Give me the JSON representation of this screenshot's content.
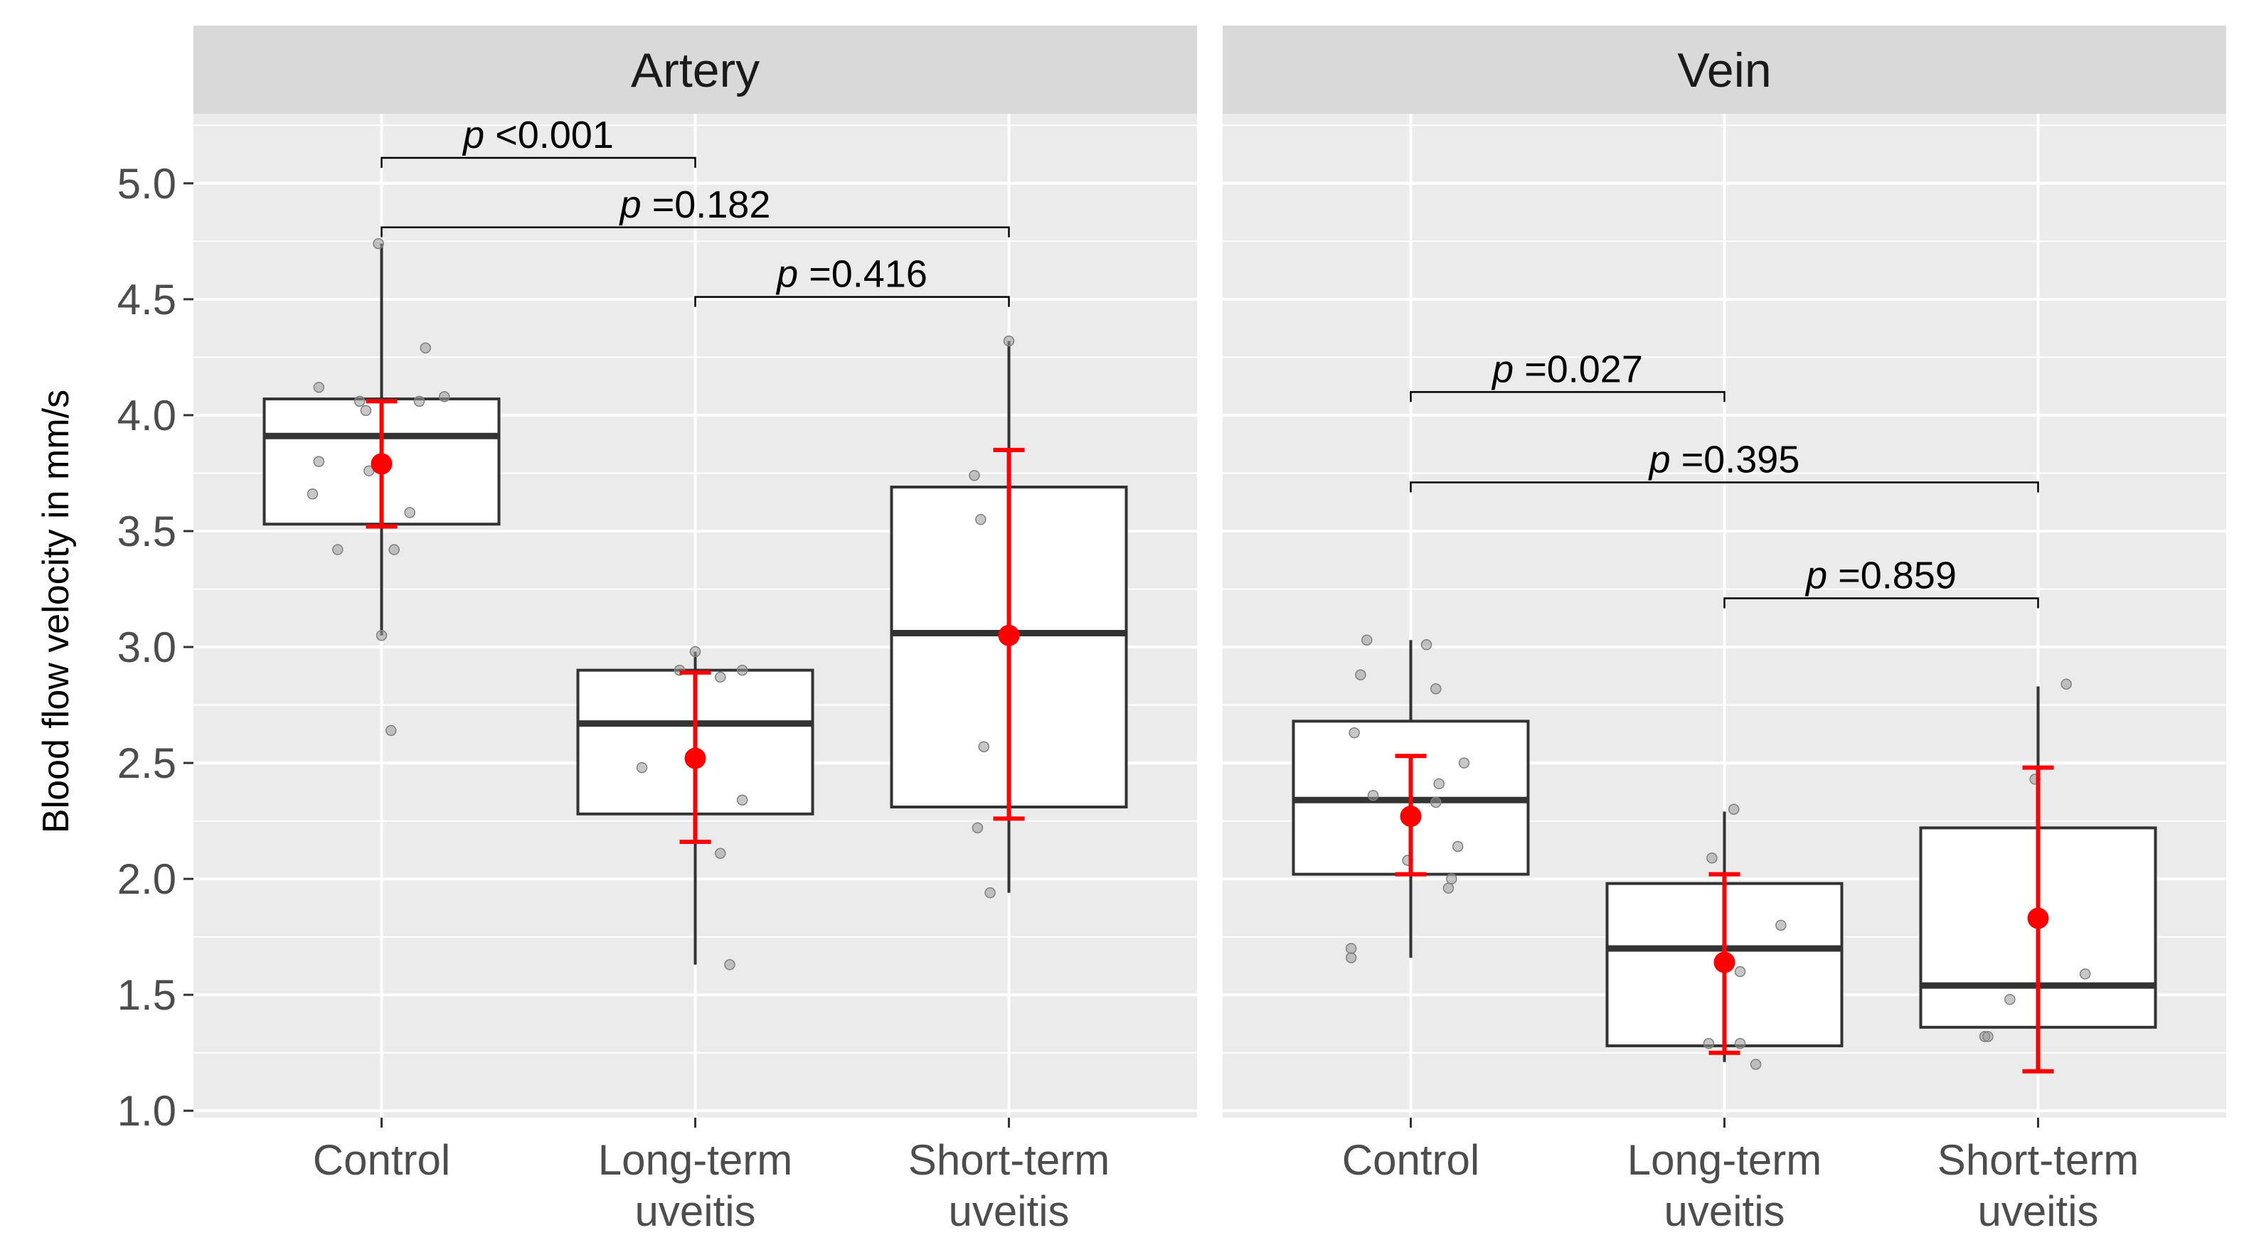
{
  "chart_data": {
    "type": "box",
    "ylabel": "Blood flow velocity in mm/s",
    "xlabel": "",
    "ylim": [
      0.97,
      5.3
    ],
    "yticks": [
      "1.0",
      "1.5",
      "2.0",
      "2.5",
      "3.0",
      "3.5",
      "4.0",
      "4.5",
      "5.0"
    ],
    "ytick_values": [
      1.0,
      1.5,
      2.0,
      2.5,
      3.0,
      3.5,
      4.0,
      4.5,
      5.0
    ],
    "categories": [
      [
        "Control"
      ],
      [
        "Long-term",
        "uveitis"
      ],
      [
        "Short-term",
        "uveitis"
      ]
    ],
    "colors": {
      "panel_bg": "#ebebeb",
      "strip_bg": "#d9d9d9",
      "grid": "#ffffff",
      "mean": "#ff0000",
      "box_line": "#333333",
      "point": "#999999"
    },
    "facets": [
      {
        "title": "Artery",
        "groups": [
          {
            "box": {
              "q1": 3.53,
              "median": 3.91,
              "q3": 4.07,
              "lower_whisker": 3.05,
              "upper_whisker": 4.74
            },
            "mean": 3.79,
            "ci": [
              3.52,
              4.06
            ],
            "points": [
              [
                -0.2,
                4.12
              ],
              [
                -0.07,
                4.06
              ],
              [
                -0.05,
                4.02
              ],
              [
                0.12,
                4.06
              ],
              [
                0.2,
                4.08
              ],
              [
                0.14,
                4.29
              ],
              [
                -0.2,
                3.8
              ],
              [
                -0.04,
                3.76
              ],
              [
                0.09,
                3.58
              ],
              [
                -0.22,
                3.66
              ],
              [
                -0.14,
                3.42
              ],
              [
                0.04,
                3.42
              ],
              [
                0.0,
                3.05
              ],
              [
                0.03,
                2.64
              ],
              [
                -0.01,
                4.74
              ]
            ]
          },
          {
            "box": {
              "q1": 2.28,
              "median": 2.67,
              "q3": 2.9,
              "lower_whisker": 1.63,
              "upper_whisker": 2.98
            },
            "mean": 2.52,
            "ci": [
              2.16,
              2.89
            ],
            "points": [
              [
                0.0,
                2.98
              ],
              [
                -0.05,
                2.9
              ],
              [
                0.15,
                2.9
              ],
              [
                0.08,
                2.87
              ],
              [
                -0.17,
                2.48
              ],
              [
                0.15,
                2.34
              ],
              [
                0.08,
                2.11
              ],
              [
                0.11,
                1.63
              ]
            ]
          },
          {
            "box": {
              "q1": 2.31,
              "median": 3.06,
              "q3": 3.69,
              "lower_whisker": 1.94,
              "upper_whisker": 4.32
            },
            "mean": 3.05,
            "ci": [
              2.26,
              3.85
            ],
            "points": [
              [
                0.0,
                4.32
              ],
              [
                -0.11,
                3.74
              ],
              [
                -0.09,
                3.55
              ],
              [
                -0.08,
                2.57
              ],
              [
                -0.1,
                2.22
              ],
              [
                -0.06,
                1.94
              ]
            ]
          }
        ],
        "comparisons": [
          {
            "from": 0,
            "to": 1,
            "y": 5.11,
            "label_p": "p",
            "label_val": " <0.001"
          },
          {
            "from": 0,
            "to": 2,
            "y": 4.81,
            "label_p": "p",
            "label_val": " =0.182"
          },
          {
            "from": 1,
            "to": 2,
            "y": 4.51,
            "label_p": "p",
            "label_val": " =0.416"
          }
        ]
      },
      {
        "title": "Vein",
        "groups": [
          {
            "box": {
              "q1": 2.02,
              "median": 2.34,
              "q3": 2.68,
              "lower_whisker": 1.66,
              "upper_whisker": 3.03
            },
            "mean": 2.27,
            "ci": [
              2.02,
              2.53
            ],
            "points": [
              [
                -0.14,
                3.03
              ],
              [
                0.05,
                3.01
              ],
              [
                -0.16,
                2.88
              ],
              [
                0.08,
                2.82
              ],
              [
                -0.18,
                2.63
              ],
              [
                0.17,
                2.5
              ],
              [
                0.09,
                2.41
              ],
              [
                -0.12,
                2.36
              ],
              [
                0.08,
                2.33
              ],
              [
                0.15,
                2.14
              ],
              [
                -0.01,
                2.08
              ],
              [
                0.13,
                2.0
              ],
              [
                0.12,
                1.96
              ],
              [
                -0.19,
                1.7
              ],
              [
                -0.19,
                1.66
              ]
            ]
          },
          {
            "box": {
              "q1": 1.28,
              "median": 1.7,
              "q3": 1.98,
              "lower_whisker": 1.21,
              "upper_whisker": 2.29
            },
            "mean": 1.64,
            "ci": [
              1.25,
              2.02
            ],
            "points": [
              [
                0.03,
                2.3
              ],
              [
                -0.04,
                2.09
              ],
              [
                0.18,
                1.8
              ],
              [
                0.05,
                1.6
              ],
              [
                -0.05,
                1.29
              ],
              [
                0.05,
                1.29
              ],
              [
                0.1,
                1.2
              ]
            ]
          },
          {
            "box": {
              "q1": 1.36,
              "median": 1.54,
              "q3": 2.22,
              "lower_whisker": 1.17,
              "upper_whisker": 2.83
            },
            "mean": 1.83,
            "ci": [
              1.17,
              2.48
            ],
            "points": [
              [
                0.09,
                2.84
              ],
              [
                -0.01,
                2.43
              ],
              [
                0.15,
                1.59
              ],
              [
                -0.09,
                1.48
              ],
              [
                -0.17,
                1.32
              ],
              [
                -0.16,
                1.32
              ]
            ]
          }
        ],
        "comparisons": [
          {
            "from": 0,
            "to": 1,
            "y": 4.1,
            "label_p": "p",
            "label_val": " =0.027"
          },
          {
            "from": 0,
            "to": 2,
            "y": 3.71,
            "label_p": "p",
            "label_val": " =0.395"
          },
          {
            "from": 1,
            "to": 2,
            "y": 3.21,
            "label_p": "p",
            "label_val": " =0.859"
          }
        ]
      }
    ]
  }
}
